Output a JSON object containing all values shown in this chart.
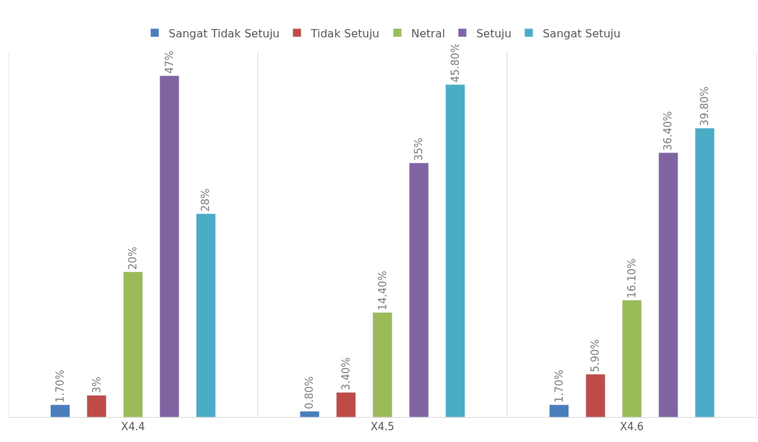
{
  "chart_data": {
    "type": "bar",
    "categories": [
      "X4.4",
      "X4.5",
      "X4.6"
    ],
    "series": [
      {
        "name": "Sangat Tidak Setuju",
        "color": "#4a7ebb",
        "values": [
          1.7,
          0.8,
          1.7
        ],
        "value_labels": [
          "1.70%",
          "0.80%",
          "1.70%"
        ]
      },
      {
        "name": "Tidak Setuju",
        "color": "#be4b48",
        "values": [
          3,
          3.4,
          5.9
        ],
        "value_labels": [
          "3%",
          "3.40%",
          "5.90%"
        ]
      },
      {
        "name": "Netral",
        "color": "#9bbb59",
        "values": [
          20,
          14.4,
          16.1
        ],
        "value_labels": [
          "20%",
          "14.40%",
          "16.10%"
        ]
      },
      {
        "name": "Setuju",
        "color": "#8064a2",
        "values": [
          47,
          35,
          36.4
        ],
        "value_labels": [
          "47%",
          "35%",
          "36.40%"
        ]
      },
      {
        "name": "Sangat Setuju",
        "color": "#4bacc6",
        "values": [
          28,
          45.8,
          39.8
        ],
        "value_labels": [
          "28%",
          "45.80%",
          "39.80%"
        ]
      }
    ],
    "grid": "x",
    "legend": "top"
  }
}
